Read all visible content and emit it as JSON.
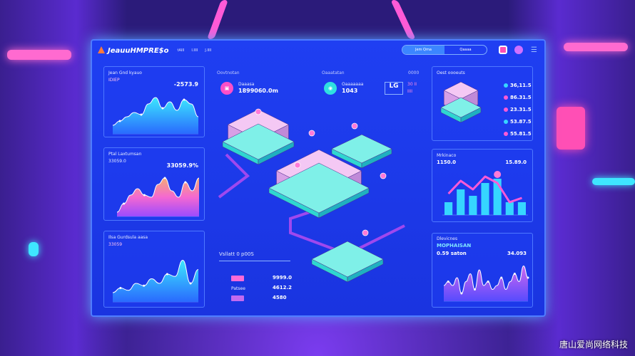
{
  "header": {
    "logo": "JeauuHMPRE$o",
    "nav": [
      "tAIII",
      "I.IIII",
      "J.IIII"
    ],
    "toggle_on": "Jem Qma",
    "toggle_off": "Qaaaa"
  },
  "left": {
    "card1": {
      "title": "Jean Gnd kyauo",
      "sub": "IDIEP",
      "value": "-2573.9",
      "series": [
        2,
        3,
        4,
        5,
        4.5,
        7,
        8.5,
        6,
        7.5,
        5.5,
        8,
        7,
        4
      ]
    },
    "card2": {
      "title": "Ptal Laxtumsan",
      "sub": "33059.0",
      "value": "33059.9%",
      "series": [
        1,
        3,
        5,
        6.5,
        5,
        4.5,
        7.5,
        9,
        6,
        4.5,
        8,
        6,
        9
      ]
    },
    "card3": {
      "title": "Ilsa Gurdsula aasa",
      "sub": "33059",
      "series": [
        2,
        3,
        2.5,
        4,
        3.5,
        5,
        4,
        6,
        5.5,
        9,
        4,
        7
      ]
    }
  },
  "center": {
    "stat1": {
      "heading": "Oovtnotan",
      "label": "Daaasa",
      "value": "1899060.0m"
    },
    "stat2": {
      "heading": "Oaaatatan",
      "label": "Oaaaaaaa",
      "value": "1043"
    },
    "badge": {
      "icon": "LG",
      "top": "0000",
      "a": "30 II",
      "b": "IIII"
    },
    "table": {
      "title": "Vsllatt 0 p00S",
      "rows": [
        {
          "label": "",
          "value": "9999.0"
        },
        {
          "label": "Patsee",
          "value": "4612.2"
        },
        {
          "label": "",
          "value": "4580"
        }
      ]
    }
  },
  "right": {
    "card1": {
      "title": "Oest oooeuts",
      "items": [
        {
          "value": "36,11.5",
          "color": "#36d6ff"
        },
        {
          "value": "86.31.5",
          "color": "#ff5ad7"
        },
        {
          "value": "23.31.5",
          "color": "#ff5ad7"
        },
        {
          "value": "53.87.5",
          "color": "#36d6ff"
        },
        {
          "value": "55.81.5",
          "color": "#ff5ad7"
        }
      ]
    },
    "card2": {
      "title": "Mrkinaco",
      "sub": "1150.0",
      "value": "15.89.0",
      "bars": [
        3,
        6,
        4.5,
        7.5,
        8.5,
        3,
        3
      ],
      "line": [
        5,
        8,
        6,
        9,
        7.5,
        3,
        4
      ]
    },
    "card3": {
      "title": "Dlevicnes",
      "sub": "MOPHAISAN",
      "sub2": "0.59 saton",
      "value": "34.093",
      "series": [
        4,
        5,
        4,
        6,
        2,
        5,
        7,
        3,
        8,
        4,
        5,
        3,
        4,
        6,
        3,
        5,
        7,
        5,
        9,
        6
      ]
    }
  },
  "colors": {
    "panel": "#1f3ff2",
    "pink": "#ff5ad7",
    "cyan": "#36d6ff",
    "box": "#e6b0f0",
    "pallet": "#2fd6d0"
  },
  "watermark": "唐山爱尚网络科技"
}
